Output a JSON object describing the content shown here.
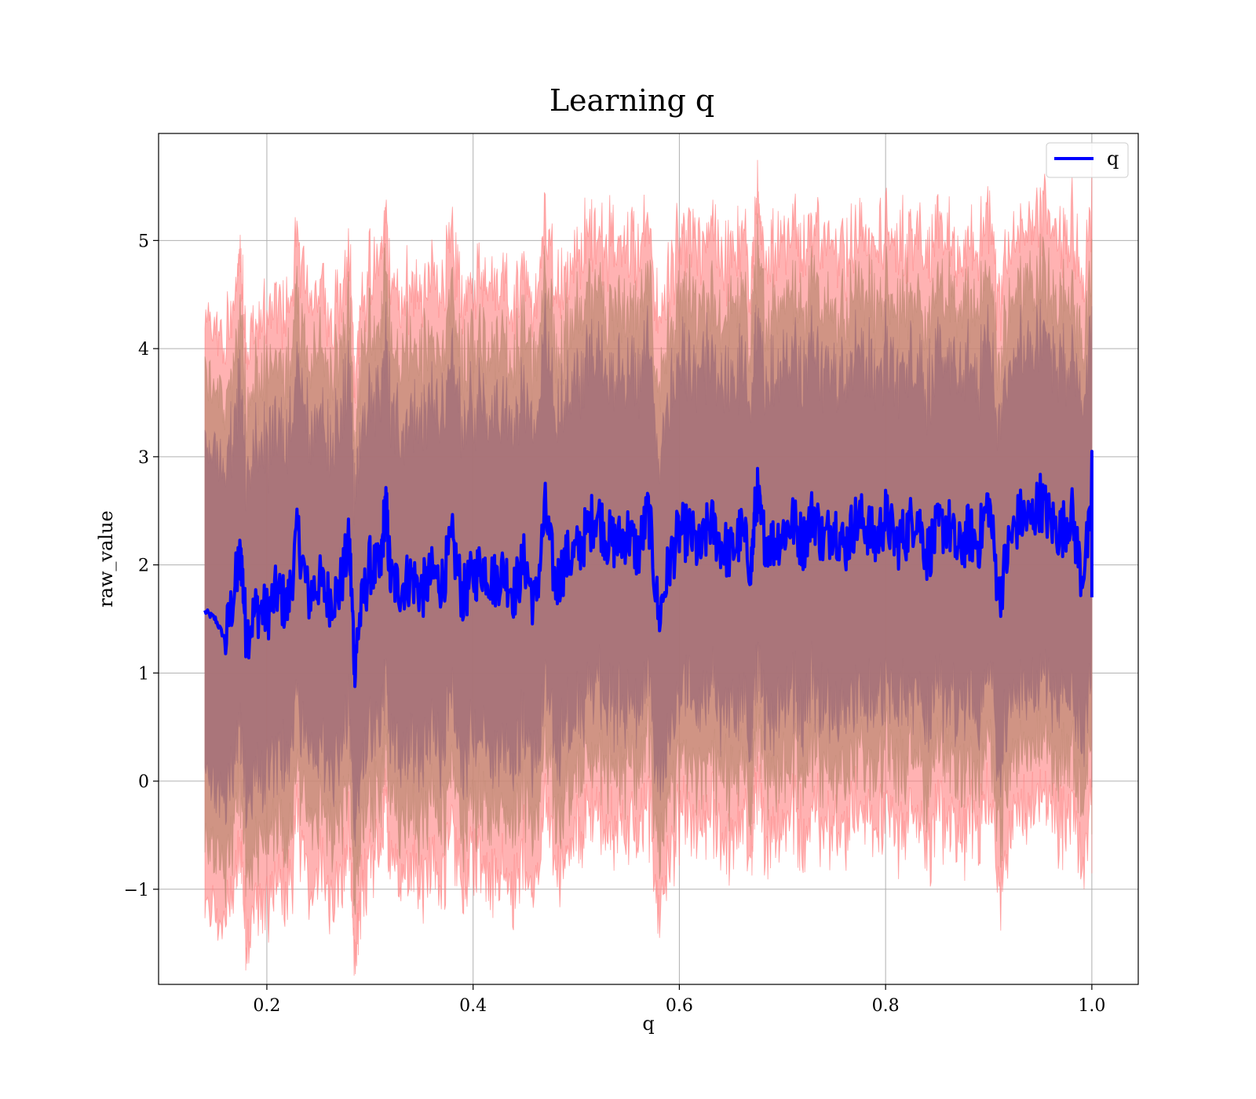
{
  "chart_data": {
    "type": "line",
    "title": "Learning q",
    "xlabel": "q",
    "ylabel": "raw_value",
    "xlim": [
      0.095,
      1.045
    ],
    "ylim": [
      -1.88,
      5.99
    ],
    "xticks": [
      0.2,
      0.4,
      0.6,
      0.8,
      1.0
    ],
    "xtick_labels": [
      "0.2",
      "0.4",
      "0.6",
      "0.8",
      "1.0"
    ],
    "yticks": [
      -1,
      0,
      1,
      2,
      3,
      4,
      5
    ],
    "ytick_labels": [
      "−1",
      "0",
      "1",
      "2",
      "3",
      "4",
      "5"
    ],
    "grid": true,
    "legend": {
      "position": "top-right",
      "entries": [
        "q"
      ]
    },
    "colors": {
      "line": "#0000ff",
      "band_outer": "#ff7f7f",
      "band_mid": "#c08a74",
      "band_inner": "#a37078"
    },
    "series": [
      {
        "name": "q",
        "x": [
          0.14,
          0.15,
          0.16,
          0.17,
          0.175,
          0.18,
          0.19,
          0.2,
          0.21,
          0.22,
          0.23,
          0.24,
          0.25,
          0.26,
          0.27,
          0.28,
          0.285,
          0.29,
          0.3,
          0.31,
          0.315,
          0.32,
          0.33,
          0.34,
          0.35,
          0.36,
          0.37,
          0.38,
          0.39,
          0.4,
          0.41,
          0.42,
          0.43,
          0.44,
          0.45,
          0.46,
          0.47,
          0.48,
          0.49,
          0.5,
          0.51,
          0.52,
          0.53,
          0.54,
          0.55,
          0.56,
          0.57,
          0.58,
          0.59,
          0.6,
          0.61,
          0.62,
          0.63,
          0.64,
          0.65,
          0.66,
          0.67,
          0.675,
          0.68,
          0.69,
          0.7,
          0.71,
          0.72,
          0.73,
          0.74,
          0.75,
          0.76,
          0.77,
          0.78,
          0.79,
          0.8,
          0.81,
          0.82,
          0.83,
          0.84,
          0.85,
          0.86,
          0.87,
          0.88,
          0.89,
          0.9,
          0.91,
          0.92,
          0.93,
          0.94,
          0.95,
          0.96,
          0.97,
          0.98,
          0.99,
          1.0
        ],
        "y": [
          1.57,
          1.5,
          1.3,
          1.85,
          2.1,
          1.35,
          1.6,
          1.55,
          1.75,
          1.6,
          2.3,
          1.7,
          1.85,
          1.7,
          1.75,
          2.2,
          1.1,
          1.5,
          2.0,
          1.9,
          2.6,
          1.85,
          1.8,
          1.9,
          1.75,
          1.9,
          1.85,
          2.2,
          1.7,
          1.9,
          2.0,
          1.85,
          1.95,
          1.75,
          2.05,
          1.6,
          2.5,
          1.8,
          2.05,
          2.1,
          2.3,
          2.5,
          2.25,
          2.2,
          2.3,
          2.1,
          2.5,
          1.5,
          2.0,
          2.3,
          2.3,
          2.1,
          2.4,
          2.2,
          2.1,
          2.3,
          2.0,
          2.7,
          2.3,
          2.2,
          2.3,
          2.4,
          2.2,
          2.5,
          2.2,
          2.4,
          2.15,
          2.4,
          2.4,
          2.2,
          2.45,
          2.2,
          2.3,
          2.5,
          2.1,
          2.3,
          2.4,
          2.1,
          2.3,
          2.2,
          2.6,
          1.7,
          2.2,
          2.45,
          2.4,
          2.6,
          2.4,
          2.3,
          2.5,
          1.9,
          2.4
        ],
        "band_half_widths": [
          1.55,
          2.15,
          2.7
        ]
      }
    ]
  }
}
